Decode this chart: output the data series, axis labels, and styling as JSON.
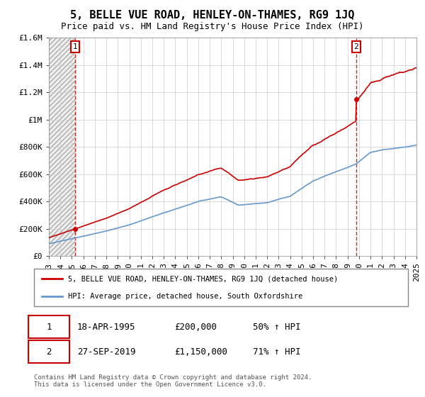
{
  "title": "5, BELLE VUE ROAD, HENLEY-ON-THAMES, RG9 1JQ",
  "subtitle": "Price paid vs. HM Land Registry's House Price Index (HPI)",
  "xlim": [
    1993,
    2025
  ],
  "ylim": [
    0,
    1600000
  ],
  "yticks": [
    0,
    200000,
    400000,
    600000,
    800000,
    1000000,
    1200000,
    1400000,
    1600000
  ],
  "ytick_labels": [
    "£0",
    "£200K",
    "£400K",
    "£600K",
    "£800K",
    "£1M",
    "£1.2M",
    "£1.4M",
    "£1.6M"
  ],
  "sale1_x": 1995.29,
  "sale1_y": 200000,
  "sale2_x": 2019.74,
  "sale2_y": 1150000,
  "property_color": "#cc0000",
  "hpi_color": "#6699cc",
  "vline_color": "#cc0000",
  "background_color": "#ffffff",
  "grid_color": "#cccccc",
  "legend_label1": "5, BELLE VUE ROAD, HENLEY-ON-THAMES, RG9 1JQ (detached house)",
  "legend_label2": "HPI: Average price, detached house, South Oxfordshire",
  "table_row1": [
    "1",
    "18-APR-1995",
    "£200,000",
    "50% ↑ HPI"
  ],
  "table_row2": [
    "2",
    "27-SEP-2019",
    "£1,150,000",
    "71% ↑ HPI"
  ],
  "footer": "Contains HM Land Registry data © Crown copyright and database right 2024.\nThis data is licensed under the Open Government Licence v3.0.",
  "title_fontsize": 11,
  "subtitle_fontsize": 9,
  "tick_fontsize": 8,
  "xticks": [
    1993,
    1994,
    1995,
    1996,
    1997,
    1998,
    1999,
    2000,
    2001,
    2002,
    2003,
    2004,
    2005,
    2006,
    2007,
    2008,
    2009,
    2010,
    2011,
    2012,
    2013,
    2014,
    2015,
    2016,
    2017,
    2018,
    2019,
    2020,
    2021,
    2022,
    2023,
    2024,
    2025
  ]
}
